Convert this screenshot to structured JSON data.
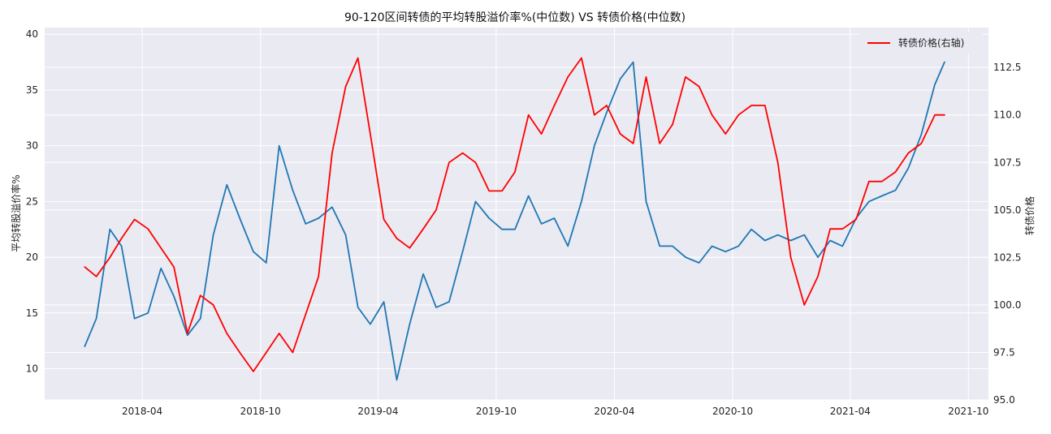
{
  "chart_data": {
    "type": "line",
    "title": "90-120区间转债的平均转股溢价率%(中位数) VS 转债价格(中位数)",
    "xlabel": "",
    "ylabel": "平均转股溢价率%",
    "y2label": "转债价格",
    "x_ticks": [
      "2018-04",
      "2018-10",
      "2019-04",
      "2019-10",
      "2020-04",
      "2020-10",
      "2021-04",
      "2021-10"
    ],
    "xlim": [
      "2017-11-01",
      "2021-11-01"
    ],
    "ylim": [
      7.2,
      40.6
    ],
    "y_ticks": [
      10,
      15,
      20,
      25,
      30,
      35,
      40
    ],
    "y2lim": [
      95.0,
      114.6
    ],
    "y2_ticks": [
      95.0,
      97.5,
      100.0,
      102.5,
      105.0,
      107.5,
      110.0,
      112.5
    ],
    "grid": true,
    "legend": {
      "position": "upper-right",
      "entries": [
        "转债价格(右轴)"
      ]
    },
    "colors": {
      "premium": "#1f77b4",
      "price": "#ff0000",
      "plot_bg": "#eaeaf2",
      "grid": "#ffffff"
    },
    "series": [
      {
        "axis": "left",
        "color": "#1f77b4",
        "x": [
          "2018-01-02",
          "2018-01-20",
          "2018-02-10",
          "2018-02-28",
          "2018-03-20",
          "2018-04-10",
          "2018-04-30",
          "2018-05-20",
          "2018-06-10",
          "2018-06-30",
          "2018-07-20",
          "2018-08-10",
          "2018-08-30",
          "2018-09-20",
          "2018-10-10",
          "2018-10-30",
          "2018-11-20",
          "2018-12-10",
          "2018-12-30",
          "2019-01-20",
          "2019-02-10",
          "2019-03-01",
          "2019-03-20",
          "2019-04-10",
          "2019-04-30",
          "2019-05-20",
          "2019-06-10",
          "2019-06-30",
          "2019-07-20",
          "2019-08-10",
          "2019-08-30",
          "2019-09-20",
          "2019-10-10",
          "2019-10-30",
          "2019-11-20",
          "2019-12-10",
          "2019-12-30",
          "2020-01-20",
          "2020-02-10",
          "2020-03-01",
          "2020-03-20",
          "2020-04-10",
          "2020-04-30",
          "2020-05-20",
          "2020-06-10",
          "2020-06-30",
          "2020-07-20",
          "2020-08-10",
          "2020-08-30",
          "2020-09-20",
          "2020-10-10",
          "2020-10-30",
          "2020-11-20",
          "2020-12-10",
          "2020-12-30",
          "2021-01-20",
          "2021-02-10",
          "2021-03-01",
          "2021-03-20",
          "2021-04-10",
          "2021-04-30",
          "2021-05-20",
          "2021-06-10",
          "2021-06-30",
          "2021-07-20",
          "2021-08-10",
          "2021-08-25"
        ],
        "y": [
          12.0,
          14.5,
          22.5,
          21.0,
          14.5,
          15.0,
          19.0,
          16.5,
          13.0,
          14.5,
          22.0,
          26.5,
          23.5,
          20.5,
          19.5,
          30.0,
          26.0,
          23.0,
          23.5,
          24.5,
          22.0,
          15.5,
          14.0,
          16.0,
          9.0,
          14.0,
          18.5,
          15.5,
          16.0,
          20.5,
          25.0,
          23.5,
          22.5,
          22.5,
          25.5,
          23.0,
          23.5,
          21.0,
          25.0,
          30.0,
          33.0,
          36.0,
          37.5,
          25.0,
          21.0,
          21.0,
          20.0,
          19.5,
          21.0,
          20.5,
          21.0,
          22.5,
          21.5,
          22.0,
          21.5,
          22.0,
          20.0,
          21.5,
          21.0,
          23.5,
          25.0,
          25.5,
          26.0,
          28.0,
          31.0,
          35.5,
          37.5
        ]
      },
      {
        "name": "转债价格(右轴)",
        "axis": "right",
        "color": "#ff0000",
        "x": [
          "2018-01-02",
          "2018-01-20",
          "2018-02-10",
          "2018-02-28",
          "2018-03-20",
          "2018-04-10",
          "2018-04-30",
          "2018-05-20",
          "2018-06-10",
          "2018-06-30",
          "2018-07-20",
          "2018-08-10",
          "2018-08-30",
          "2018-09-20",
          "2018-10-10",
          "2018-10-30",
          "2018-11-20",
          "2018-12-10",
          "2018-12-30",
          "2019-01-20",
          "2019-02-10",
          "2019-03-01",
          "2019-03-20",
          "2019-04-10",
          "2019-04-30",
          "2019-05-20",
          "2019-06-10",
          "2019-06-30",
          "2019-07-20",
          "2019-08-10",
          "2019-08-30",
          "2019-09-20",
          "2019-10-10",
          "2019-10-30",
          "2019-11-20",
          "2019-12-10",
          "2019-12-30",
          "2020-01-20",
          "2020-02-10",
          "2020-03-01",
          "2020-03-20",
          "2020-04-10",
          "2020-04-30",
          "2020-05-20",
          "2020-06-10",
          "2020-06-30",
          "2020-07-20",
          "2020-08-10",
          "2020-08-30",
          "2020-09-20",
          "2020-10-10",
          "2020-10-30",
          "2020-11-20",
          "2020-12-10",
          "2020-12-30",
          "2021-01-20",
          "2021-02-10",
          "2021-03-01",
          "2021-03-20",
          "2021-04-10",
          "2021-04-30",
          "2021-05-20",
          "2021-06-10",
          "2021-06-30",
          "2021-07-20",
          "2021-08-10",
          "2021-08-25"
        ],
        "y": [
          102.0,
          101.5,
          102.5,
          103.5,
          104.5,
          104.0,
          103.0,
          102.0,
          98.5,
          100.5,
          100.0,
          98.5,
          97.5,
          96.5,
          97.5,
          98.5,
          97.5,
          99.5,
          101.5,
          108.0,
          111.5,
          113.0,
          109.0,
          104.5,
          103.5,
          103.0,
          104.0,
          105.0,
          107.5,
          108.0,
          107.5,
          106.0,
          106.0,
          107.0,
          110.0,
          109.0,
          110.5,
          112.0,
          113.0,
          110.0,
          110.5,
          109.0,
          108.5,
          112.0,
          108.5,
          109.5,
          112.0,
          111.5,
          110.0,
          109.0,
          110.0,
          110.5,
          110.5,
          107.5,
          102.5,
          100.0,
          101.5,
          104.0,
          104.0,
          104.5,
          106.5,
          106.5,
          107.0,
          108.0,
          108.5,
          110.0,
          110.0
        ]
      }
    ]
  }
}
